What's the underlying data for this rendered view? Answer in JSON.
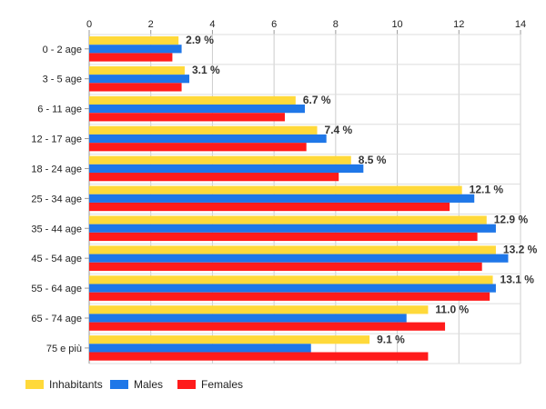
{
  "chart_data": {
    "type": "bar",
    "orientation": "horizontal",
    "categories": [
      "0 - 2 age",
      "3 - 5 age",
      "6 - 11 age",
      "12 - 17 age",
      "18 - 24 age",
      "25 - 34 age",
      "35 - 44 age",
      "45 - 54 age",
      "55 - 64 age",
      "65 - 74 age",
      "75 e più"
    ],
    "series": [
      {
        "name": "Inhabitants",
        "color": "#FFD93A",
        "values": [
          2.9,
          3.1,
          6.7,
          7.4,
          8.5,
          12.1,
          12.9,
          13.2,
          13.1,
          11.0,
          9.1
        ]
      },
      {
        "name": "Males",
        "color": "#1F77E8",
        "values": [
          3.0,
          3.25,
          7.0,
          7.7,
          8.9,
          12.5,
          13.2,
          13.6,
          13.2,
          10.3,
          7.2
        ]
      },
      {
        "name": "Females",
        "color": "#FF1B1B",
        "values": [
          2.7,
          3.0,
          6.35,
          7.05,
          8.1,
          11.7,
          12.6,
          12.75,
          13.0,
          11.55,
          11.0
        ]
      }
    ],
    "data_labels": [
      "2.9 %",
      "3.1 %",
      "6.7 %",
      "7.4 %",
      "8.5 %",
      "12.1 %",
      "12.9 %",
      "13.2 %",
      "13.1 %",
      "11.0 %",
      "9.1 %"
    ],
    "data_label_series": "Inhabitants",
    "x_ticks": [
      "0",
      "2",
      "4",
      "6",
      "8",
      "10",
      "12",
      "14"
    ],
    "xlim": [
      0,
      14
    ],
    "axis_position": "top",
    "grid": true,
    "legend_position": "bottom-left",
    "title": "",
    "xlabel": "",
    "ylabel": ""
  }
}
